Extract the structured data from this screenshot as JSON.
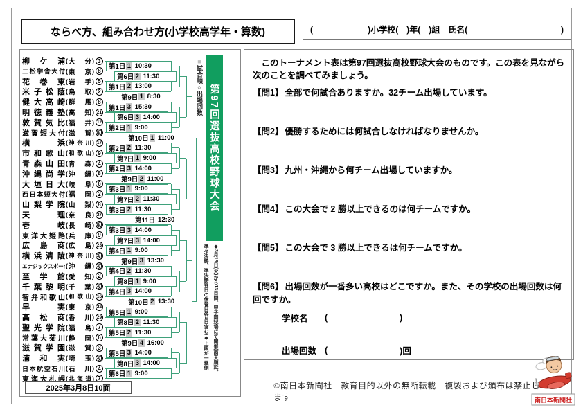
{
  "page": {
    "title": "ならべ方、組み合わせ方(小学校高学年・算数)",
    "name_line": {
      "open": "(",
      "mid": ")小学校(　)年(　)組　氏名(",
      "close": ")"
    },
    "date_box": "2025年3月8日10面",
    "copyright": "©南日本新聞社　教育目的以外の無断転載　複製および頒布は禁止します",
    "mascot_label": "南日本新聞社"
  },
  "tournament": {
    "banner": "第97回選抜高校野球大会",
    "legend": [
      {
        "symbol": "■",
        "label": "試合順"
      },
      {
        "symbol": "○",
        "label": "出場回数"
      }
    ],
    "note": "◆3月18日(火)から13日間、甲子園球場にて開催(雨天順延。準々決勝、準決勝翌日の休養日各1日含む)◆上段が一塁側",
    "colors": {
      "banner_green": "#119e5f",
      "line_green": "#3fa17b",
      "shade_gray": "#c9c9c9",
      "mascot_red": "#cc2222"
    },
    "teams": [
      {
        "name": "柳ケ浦",
        "pref": "大分",
        "count": "3"
      },
      {
        "name": "二松学舎大付",
        "pref": "東京",
        "count": "8"
      },
      {
        "name": "花巻東",
        "pref": "岩手",
        "count": "5"
      },
      {
        "name": "米子松蔭",
        "pref": "鳥取",
        "count": "2"
      },
      {
        "name": "健大高崎",
        "pref": "群馬",
        "count": "8"
      },
      {
        "name": "明徳義塾",
        "pref": "高知",
        "count": "21"
      },
      {
        "name": "敦賀気比",
        "pref": "福井",
        "count": "12"
      },
      {
        "name": "滋賀短大付",
        "pref": "滋賀",
        "count": "初"
      },
      {
        "name": "横浜",
        "pref": "神奈川",
        "count": "17"
      },
      {
        "name": "市和歌山",
        "pref": "和歌山",
        "count": "9"
      },
      {
        "name": "青森山田",
        "pref": "青森",
        "count": "4"
      },
      {
        "name": "沖縄尚学",
        "pref": "沖縄",
        "count": "8"
      },
      {
        "name": "大垣日大",
        "pref": "岐阜",
        "count": "6"
      },
      {
        "name": "西日本短大付",
        "pref": "福岡",
        "count": "2"
      },
      {
        "name": "山梨学院",
        "pref": "山梨",
        "count": "8"
      },
      {
        "name": "天理",
        "pref": "奈良",
        "count": "27"
      },
      {
        "name": "壱岐",
        "pref": "長崎",
        "count": "初"
      },
      {
        "name": "東洋大姫路",
        "pref": "兵庫",
        "count": "9"
      },
      {
        "name": "広島商",
        "pref": "広島",
        "count": "23"
      },
      {
        "name": "横浜清陵",
        "pref": "神奈川",
        "count": "初"
      },
      {
        "name": "エナジックスポーツ",
        "pref": "沖縄",
        "count": "初"
      },
      {
        "name": "至学館",
        "pref": "愛知",
        "count": "2"
      },
      {
        "name": "千葉黎明",
        "pref": "千葉",
        "count": "初"
      },
      {
        "name": "智弁和歌山",
        "pref": "和歌山",
        "count": "16"
      },
      {
        "name": "早実",
        "pref": "東京",
        "count": "22"
      },
      {
        "name": "高松商",
        "pref": "香川",
        "count": "29"
      },
      {
        "name": "聖光学院",
        "pref": "福島",
        "count": "7"
      },
      {
        "name": "常葉大菊川",
        "pref": "静岡",
        "count": "6"
      },
      {
        "name": "滋賀学園",
        "pref": "滋賀",
        "count": "3"
      },
      {
        "name": "浦和実",
        "pref": "埼玉",
        "count": "初"
      },
      {
        "name": "日本航空石川",
        "pref": "石川",
        "count": "4"
      },
      {
        "name": "東海大札幌",
        "pref": "北海道",
        "count": "7"
      }
    ],
    "rounds": [
      [
        {
          "day": "第1日",
          "no": "1",
          "time": "10:30"
        },
        {
          "day": "第1日",
          "no": "2",
          "time": "13:00"
        },
        {
          "day": "第1日",
          "no": "3",
          "time": "15:30"
        },
        {
          "day": "第2日",
          "no": "1",
          "time": "9:00"
        },
        {
          "day": "第2日",
          "no": "2",
          "time": "11:30"
        },
        {
          "day": "第2日",
          "no": "3",
          "time": "14:00"
        },
        {
          "day": "第3日",
          "no": "1",
          "time": "9:00"
        },
        {
          "day": "第3日",
          "no": "2",
          "time": "11:30"
        },
        {
          "day": "第3日",
          "no": "3",
          "time": "14:00"
        },
        {
          "day": "第4日",
          "no": "1",
          "time": "9:00"
        },
        {
          "day": "第4日",
          "no": "2",
          "time": "11:30"
        },
        {
          "day": "第4日",
          "no": "3",
          "time": "14:00"
        },
        {
          "day": "第5日",
          "no": "1",
          "time": "9:00"
        },
        {
          "day": "第5日",
          "no": "2",
          "time": "11:30"
        },
        {
          "day": "第5日",
          "no": "3",
          "time": "14:00"
        },
        {
          "day": "第6日",
          "no": "1",
          "time": "9:00"
        }
      ],
      [
        {
          "day": "第6日",
          "no": "2",
          "time": "11:30"
        },
        {
          "day": "第6日",
          "no": "3",
          "time": "14:00"
        },
        {
          "day": "第7日",
          "no": "1",
          "time": "9:00"
        },
        {
          "day": "第7日",
          "no": "2",
          "time": "11:30"
        },
        {
          "day": "第7日",
          "no": "3",
          "time": "14:00"
        },
        {
          "day": "第8日",
          "no": "1",
          "time": "9:00"
        },
        {
          "day": "第8日",
          "no": "2",
          "time": "11:30"
        },
        {
          "day": "第8日",
          "no": "3",
          "time": "14:00"
        }
      ],
      [
        {
          "day": "第9日",
          "no": "1",
          "time": "8:30"
        },
        {
          "day": "第9日",
          "no": "2",
          "time": "11:00"
        },
        {
          "day": "第9日",
          "no": "3",
          "time": "13:30"
        },
        {
          "day": "第9日",
          "no": "4",
          "time": "16:00"
        }
      ],
      [
        {
          "day": "第10日",
          "no": "1",
          "time": "11:00"
        },
        {
          "day": "第10日",
          "no": "2",
          "time": "13:30"
        }
      ],
      [
        {
          "day": "第11日",
          "no": "",
          "time": "12:30"
        }
      ]
    ]
  },
  "questions": {
    "intro": "　このトーナメント表は第97回選抜高校野球大会のものです。この表を見ながら次のことを調べてみましょう。",
    "items": [
      {
        "label": "【問1】",
        "text": "全部で何試合ありますか。32チーム出場しています。"
      },
      {
        "label": "【問2】",
        "text": "優勝するためには何試合しなければなりませんか。"
      },
      {
        "label": "【問3】",
        "text": "九州・沖縄から何チーム出場していますか。"
      },
      {
        "label": "【問4】",
        "text": "この大会で 2 勝以上できるのは何チームですか。"
      },
      {
        "label": "【問5】",
        "text": "この大会で 3 勝以上できるは何チームですか。"
      },
      {
        "label": "【問6】",
        "text": "出場回数が一番多い高校はどこですか。また、その学校の出場回数は何回ですか。"
      }
    ],
    "q6": {
      "school_label": "学校名",
      "count_label": "出場回数",
      "open": "(",
      "close": ")",
      "close_kai": ")回"
    }
  }
}
